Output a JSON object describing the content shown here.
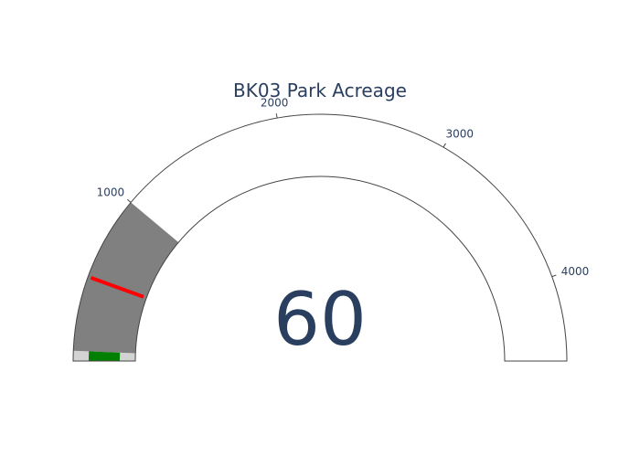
{
  "chart_data": {
    "type": "gauge",
    "title": "BK03 Park Acreage",
    "value": 60,
    "value_label": "60",
    "axis_range": [
      0,
      4500
    ],
    "ticks": [
      {
        "value": 1000,
        "label": "1000"
      },
      {
        "value": 2000,
        "label": "2000"
      },
      {
        "value": 3000,
        "label": "3000"
      },
      {
        "value": 4000,
        "label": "4000"
      }
    ],
    "steps": [
      {
        "range": [
          0,
          60
        ],
        "color": "#d3d3d3"
      },
      {
        "range": [
          60,
          1000
        ],
        "color": "#808080"
      }
    ],
    "bar": {
      "value": 60,
      "color": "#008000"
    },
    "threshold": {
      "value": 500,
      "color": "#ff0000"
    },
    "gauge_background": "#ffffff",
    "border_color": "#444444",
    "text_color": "#2a3f5f"
  }
}
